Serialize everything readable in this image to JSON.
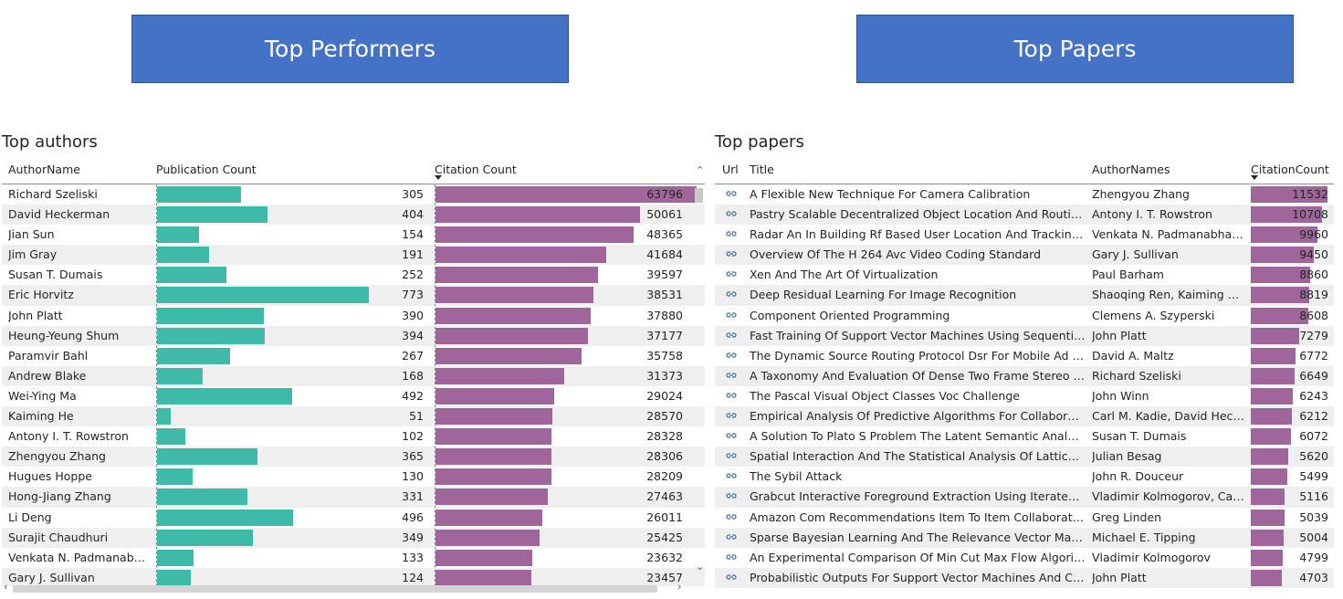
{
  "banners": {
    "left": "Top Performers",
    "right": "Top Papers"
  },
  "authors_table": {
    "title": "Top authors",
    "columns": [
      "AuthorName",
      "Publication Count",
      "Citation Count"
    ],
    "sorted_column": "Citation Count",
    "rows": [
      {
        "name": "Richard Szeliski",
        "pubs": 305,
        "cites": 63796
      },
      {
        "name": "David Heckerman",
        "pubs": 404,
        "cites": 50061
      },
      {
        "name": "Jian Sun",
        "pubs": 154,
        "cites": 48365
      },
      {
        "name": "Jim Gray",
        "pubs": 191,
        "cites": 41684
      },
      {
        "name": "Susan T. Dumais",
        "pubs": 252,
        "cites": 39597
      },
      {
        "name": "Eric Horvitz",
        "pubs": 773,
        "cites": 38531
      },
      {
        "name": "John Platt",
        "pubs": 390,
        "cites": 37880
      },
      {
        "name": "Heung-Yeung Shum",
        "pubs": 394,
        "cites": 37177
      },
      {
        "name": "Paramvir Bahl",
        "pubs": 267,
        "cites": 35758
      },
      {
        "name": "Andrew Blake",
        "pubs": 168,
        "cites": 31373
      },
      {
        "name": "Wei-Ying Ma",
        "pubs": 492,
        "cites": 29024
      },
      {
        "name": "Kaiming He",
        "pubs": 51,
        "cites": 28570
      },
      {
        "name": "Antony I. T. Rowstron",
        "pubs": 102,
        "cites": 28328
      },
      {
        "name": "Zhengyou Zhang",
        "pubs": 365,
        "cites": 28306
      },
      {
        "name": "Hugues Hoppe",
        "pubs": 130,
        "cites": 28209
      },
      {
        "name": "Hong-Jiang Zhang",
        "pubs": 331,
        "cites": 27463
      },
      {
        "name": "Li Deng",
        "pubs": 496,
        "cites": 26011
      },
      {
        "name": "Surajit Chaudhuri",
        "pubs": 349,
        "cites": 25425
      },
      {
        "name": "Venkata N. Padmanabhan",
        "pubs": 133,
        "cites": 23632
      },
      {
        "name": "Gary J. Sullivan",
        "pubs": 124,
        "cites": 23457
      }
    ],
    "pubs_max": 773,
    "cites_max": 63796,
    "colors": {
      "pubs_bar": "#3fbaa8",
      "cites_bar": "#a0669c"
    }
  },
  "papers_table": {
    "title": "Top papers",
    "columns": [
      "Url",
      "Title",
      "AuthorNames",
      "CitationCount"
    ],
    "sorted_column": "CitationCount",
    "url_icon": "link-icon",
    "rows": [
      {
        "title": "A Flexible New Technique For Camera Calibration",
        "authors": "Zhengyou Zhang",
        "cites": 11532
      },
      {
        "title": "Pastry Scalable Decentralized Object Location And Routing F...",
        "authors": "Antony I. T. Rowstron",
        "cites": 10708
      },
      {
        "title": "Radar An In Building Rf Based User Location And Tracking Sy...",
        "authors": "Venkata N. Padmanabhan,...",
        "cites": 9960
      },
      {
        "title": "Overview Of The H 264 Avc Video Coding Standard",
        "authors": "Gary J. Sullivan",
        "cites": 9450
      },
      {
        "title": "Xen And The Art Of Virtualization",
        "authors": "Paul Barham",
        "cites": 8860
      },
      {
        "title": "Deep Residual Learning For Image Recognition",
        "authors": "Shaoqing Ren, Kaiming H...",
        "cites": 8819
      },
      {
        "title": "Component Oriented Programming",
        "authors": "Clemens A. Szyperski",
        "cites": 8608
      },
      {
        "title": "Fast Training Of Support Vector Machines Using Sequential ...",
        "authors": "John Platt",
        "cites": 7279
      },
      {
        "title": "The Dynamic Source Routing Protocol Dsr For Mobile Ad Ho...",
        "authors": "David A. Maltz",
        "cites": 6772
      },
      {
        "title": "A Taxonomy And Evaluation Of Dense Two Frame Stereo Cor...",
        "authors": "Richard Szeliski",
        "cites": 6649
      },
      {
        "title": "The Pascal Visual Object Classes Voc Challenge",
        "authors": "John Winn",
        "cites": 6243
      },
      {
        "title": "Empirical Analysis Of Predictive Algorithms For Collaborative ...",
        "authors": "Carl M. Kadie, David Heck...",
        "cites": 6212
      },
      {
        "title": "A Solution To Plato S Problem The Latent Semantic Analysis ...",
        "authors": "Susan T. Dumais",
        "cites": 6072
      },
      {
        "title": "Spatial Interaction And The Statistical Analysis Of Lattice Syst...",
        "authors": "Julian Besag",
        "cites": 5620
      },
      {
        "title": "The Sybil Attack",
        "authors": "John R. Douceur",
        "cites": 5499
      },
      {
        "title": "Grabcut Interactive Foreground Extraction Using Iterated Gra...",
        "authors": "Vladimir Kolmogorov, Car...",
        "cites": 5116
      },
      {
        "title": "Amazon Com Recommendations Item To Item Collaborative ...",
        "authors": "Greg Linden",
        "cites": 5039
      },
      {
        "title": "Sparse Bayesian Learning And The Relevance Vector Machine",
        "authors": "Michael E. Tipping",
        "cites": 5004
      },
      {
        "title": "An Experimental Comparison Of Min Cut Max Flow Algorith...",
        "authors": "Vladimir Kolmogorov",
        "cites": 4799
      },
      {
        "title": "Probabilistic Outputs For Support Vector Machines And Com...",
        "authors": "John Platt",
        "cites": 4703
      }
    ],
    "cites_max": 11532,
    "colors": {
      "cites_bar": "#a0669c"
    }
  }
}
